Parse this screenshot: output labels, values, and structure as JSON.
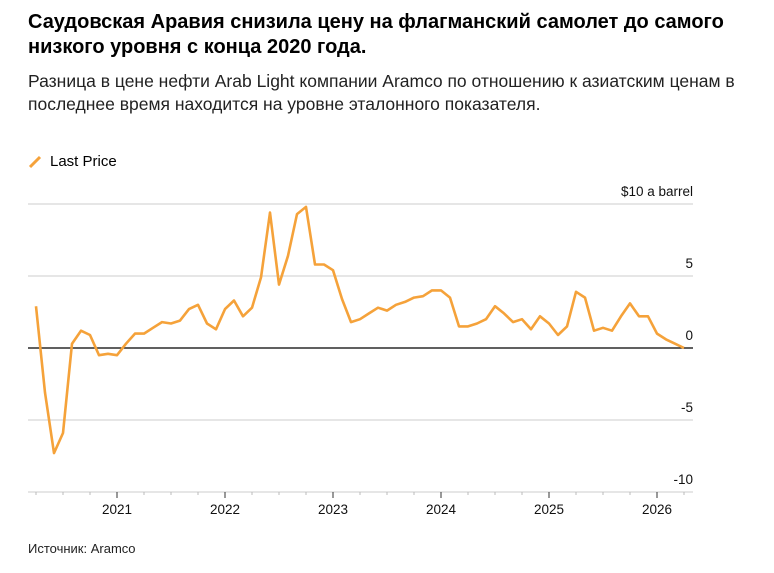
{
  "title": "Саудовская Аравия снизила цену на флагманский самолет до самого низкого уровня с конца 2020 года.",
  "subtitle": "Разница в цене нефти Arab Light компании Aramco по отношению к азиатским ценам в последнее время находится на уровне эталонного показателя.",
  "source": "Источник: Aramco",
  "colors": {
    "series": "#f5a23a",
    "grid": "#cccccc",
    "zero": "#000000"
  },
  "chart_data": {
    "type": "line",
    "unit_label": "$10 a barrel",
    "ylim": [
      -10,
      10
    ],
    "yticks": [
      {
        "v": 10,
        "label": "$10 a barrel"
      },
      {
        "v": 5,
        "label": "5"
      },
      {
        "v": 0,
        "label": "0"
      },
      {
        "v": -5,
        "label": "-5"
      },
      {
        "v": -10,
        "label": "-10"
      }
    ],
    "xticks": [
      "2021",
      "2022",
      "2023",
      "2024",
      "2025",
      "2026"
    ],
    "grid": true,
    "legend_placement": "top-left",
    "series": [
      {
        "name": "Last Price",
        "x": [
          "2020-04",
          "2020-05",
          "2020-06",
          "2020-07",
          "2020-08",
          "2020-09",
          "2020-10",
          "2020-11",
          "2020-12",
          "2021-01",
          "2021-02",
          "2021-03",
          "2021-04",
          "2021-05",
          "2021-06",
          "2021-07",
          "2021-08",
          "2021-09",
          "2021-10",
          "2021-11",
          "2021-12",
          "2022-01",
          "2022-02",
          "2022-03",
          "2022-04",
          "2022-05",
          "2022-06",
          "2022-07",
          "2022-08",
          "2022-09",
          "2022-10",
          "2022-11",
          "2022-12",
          "2023-01",
          "2023-02",
          "2023-03",
          "2023-04",
          "2023-05",
          "2023-06",
          "2023-07",
          "2023-08",
          "2023-09",
          "2023-10",
          "2023-11",
          "2023-12",
          "2024-01",
          "2024-02",
          "2024-03",
          "2024-04",
          "2024-05",
          "2024-06",
          "2024-07",
          "2024-08",
          "2024-09",
          "2024-10",
          "2024-11",
          "2024-12",
          "2025-01",
          "2025-02",
          "2025-03",
          "2025-04",
          "2025-05",
          "2025-06",
          "2025-07",
          "2025-08",
          "2025-09",
          "2025-10",
          "2025-11",
          "2025-12",
          "2026-01",
          "2026-02",
          "2026-03",
          "2026-04"
        ],
        "values": [
          2.9,
          -3.1,
          -7.3,
          -5.9,
          0.3,
          1.2,
          0.9,
          -0.5,
          -0.4,
          -0.5,
          0.3,
          1.0,
          1.0,
          1.4,
          1.8,
          1.7,
          1.9,
          2.7,
          3.0,
          1.7,
          1.3,
          2.7,
          3.3,
          2.2,
          2.8,
          4.9,
          9.4,
          4.4,
          6.4,
          9.3,
          9.8,
          5.8,
          5.8,
          5.4,
          3.4,
          1.8,
          2.0,
          2.4,
          2.8,
          2.6,
          3.0,
          3.2,
          3.5,
          3.6,
          4.0,
          4.0,
          3.5,
          1.5,
          1.5,
          1.7,
          2.0,
          2.9,
          2.4,
          1.8,
          2.0,
          1.3,
          2.2,
          1.7,
          0.9,
          1.5,
          3.9,
          3.5,
          1.2,
          1.4,
          1.2,
          2.2,
          3.1,
          2.2,
          2.2,
          1.0,
          0.6,
          0.3,
          0.0
        ]
      }
    ]
  }
}
